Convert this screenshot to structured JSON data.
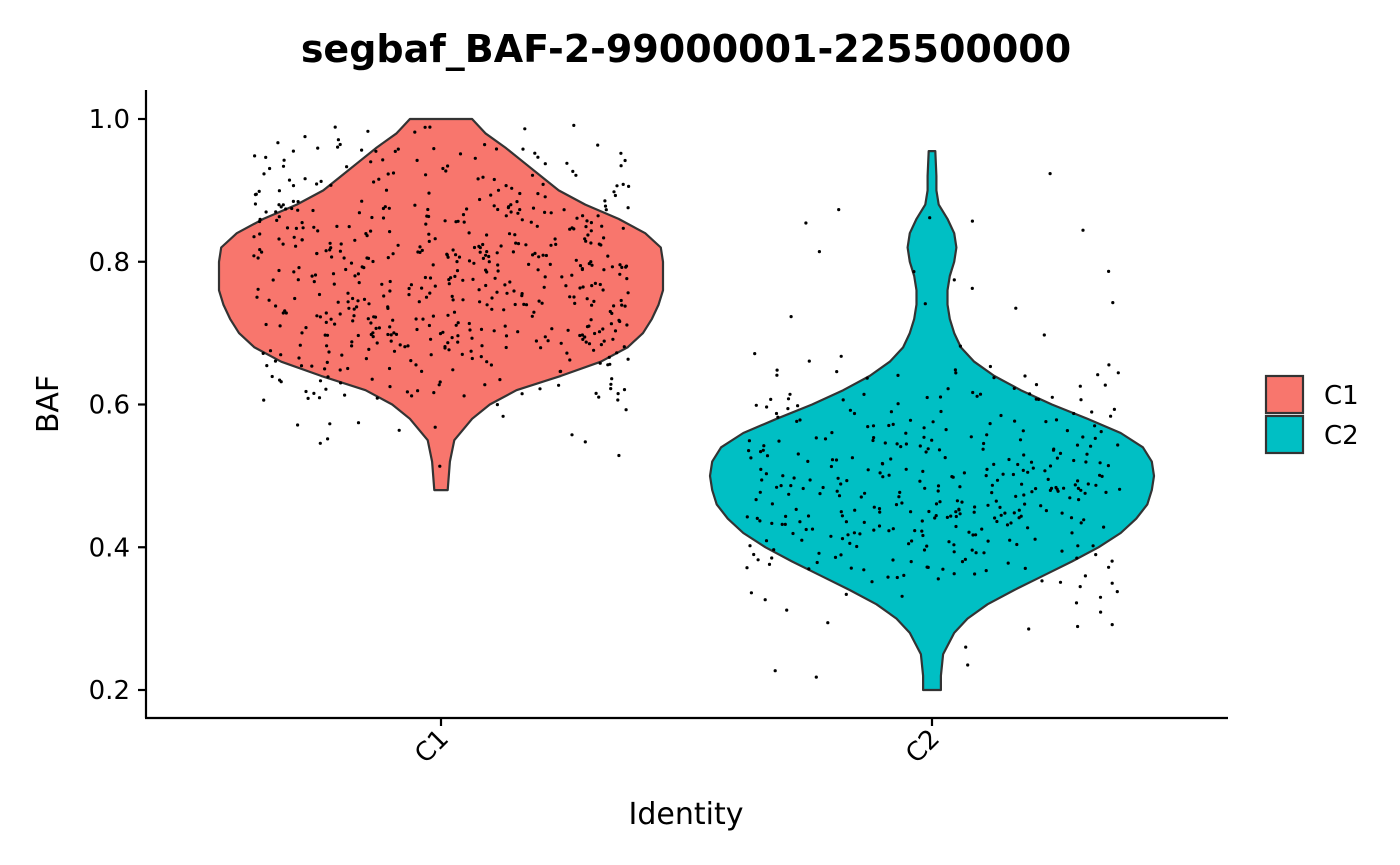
{
  "chart_data": {
    "type": "violin",
    "title": "segbaf_BAF-2-99000001-225500000",
    "xlabel": "Identity",
    "ylabel": "BAF",
    "categories": [
      "C1",
      "C2"
    ],
    "ylim": [
      0.16,
      1.04
    ],
    "yticks": [
      "0.2",
      "0.4",
      "0.6",
      "0.8",
      "1.0"
    ],
    "grid": false,
    "legend_position": "right",
    "legend": [
      {
        "label": "C1",
        "color": "#F8766D"
      },
      {
        "label": "C2",
        "color": "#00BFC4"
      }
    ],
    "series": [
      {
        "name": "C1",
        "color": "#F8766D",
        "min": 0.48,
        "max": 1.0,
        "density": [
          [
            0.48,
            0.03
          ],
          [
            0.52,
            0.04
          ],
          [
            0.55,
            0.06
          ],
          [
            0.58,
            0.14
          ],
          [
            0.6,
            0.22
          ],
          [
            0.62,
            0.34
          ],
          [
            0.64,
            0.54
          ],
          [
            0.66,
            0.72
          ],
          [
            0.68,
            0.84
          ],
          [
            0.7,
            0.91
          ],
          [
            0.72,
            0.95
          ],
          [
            0.74,
            0.98
          ],
          [
            0.76,
            1.0
          ],
          [
            0.78,
            1.0
          ],
          [
            0.8,
            1.0
          ],
          [
            0.82,
            0.99
          ],
          [
            0.84,
            0.92
          ],
          [
            0.86,
            0.8
          ],
          [
            0.88,
            0.65
          ],
          [
            0.9,
            0.53
          ],
          [
            0.92,
            0.45
          ],
          [
            0.94,
            0.37
          ],
          [
            0.96,
            0.29
          ],
          [
            0.98,
            0.2
          ],
          [
            1.0,
            0.14
          ]
        ]
      },
      {
        "name": "C2",
        "color": "#00BFC4",
        "min": 0.2,
        "max": 0.955,
        "density": [
          [
            0.2,
            0.04
          ],
          [
            0.22,
            0.04
          ],
          [
            0.25,
            0.05
          ],
          [
            0.28,
            0.1
          ],
          [
            0.3,
            0.16
          ],
          [
            0.32,
            0.25
          ],
          [
            0.34,
            0.37
          ],
          [
            0.36,
            0.5
          ],
          [
            0.38,
            0.63
          ],
          [
            0.4,
            0.75
          ],
          [
            0.42,
            0.85
          ],
          [
            0.44,
            0.92
          ],
          [
            0.46,
            0.97
          ],
          [
            0.48,
            0.99
          ],
          [
            0.5,
            1.0
          ],
          [
            0.52,
            0.99
          ],
          [
            0.54,
            0.95
          ],
          [
            0.56,
            0.85
          ],
          [
            0.58,
            0.7
          ],
          [
            0.6,
            0.54
          ],
          [
            0.62,
            0.4
          ],
          [
            0.64,
            0.28
          ],
          [
            0.66,
            0.19
          ],
          [
            0.68,
            0.13
          ],
          [
            0.7,
            0.1
          ],
          [
            0.72,
            0.08
          ],
          [
            0.74,
            0.07
          ],
          [
            0.76,
            0.07
          ],
          [
            0.78,
            0.08
          ],
          [
            0.8,
            0.1
          ],
          [
            0.82,
            0.11
          ],
          [
            0.84,
            0.1
          ],
          [
            0.86,
            0.07
          ],
          [
            0.88,
            0.03
          ],
          [
            0.9,
            0.02
          ],
          [
            0.92,
            0.02
          ],
          [
            0.955,
            0.015
          ]
        ]
      }
    ]
  },
  "colors": {
    "c1": "#F8766D",
    "c2": "#00BFC4",
    "outline": "#333333",
    "point": "#000000"
  }
}
